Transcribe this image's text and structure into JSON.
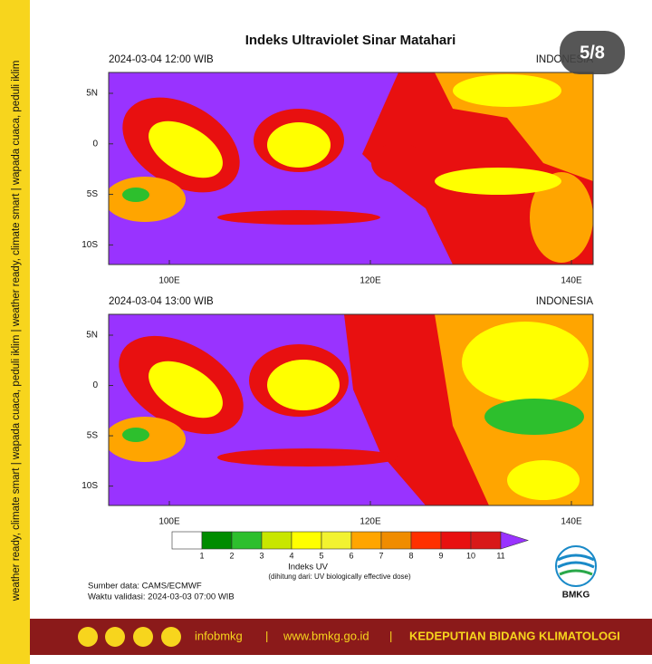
{
  "title": "Indeks Ultraviolet Sinar Matahari",
  "badge": "5/8",
  "panels": [
    {
      "time": "2024-03-04  12:00 WIB",
      "region": "INDONESIA",
      "lat_labels": [
        "5N",
        "0",
        "5S",
        "10S"
      ],
      "lon_labels": [
        "100E",
        "120E",
        "140E"
      ]
    },
    {
      "time": "2024-03-04  13:00 WIB",
      "region": "INDONESIA",
      "lat_labels": [
        "5N",
        "0",
        "5S",
        "10S"
      ],
      "lon_labels": [
        "100E",
        "120E",
        "140E"
      ]
    }
  ],
  "colorbar": {
    "title": "Indeks UV",
    "note": "(dihitung dari: UV biologically effective dose)",
    "ticks": [
      1,
      2,
      3,
      4,
      5,
      6,
      7,
      8,
      9,
      10,
      11
    ],
    "colors": [
      "#ffffff",
      "#008c00",
      "#2dbf2d",
      "#c8e600",
      "#ffff00",
      "#f2f230",
      "#ffa500",
      "#f08c00",
      "#ff3000",
      "#e81010",
      "#d81818",
      "#9933ff"
    ]
  },
  "source": "Sumber data: CAMS/ECMWF",
  "validity": "Waktu validasi: 2024-03-03 07:00 WIB",
  "logo": "BMKG",
  "side_text": "weather ready, climate smart  |  wapada cuaca, peduli iklim  |  weather ready, climate smart  |  wapada cuaca, peduli iklim",
  "footer": {
    "handle": "infobmkg",
    "website": "www.bmkg.go.id",
    "unit": "KEDEPUTIAN BIDANG KLIMATOLOGI"
  }
}
